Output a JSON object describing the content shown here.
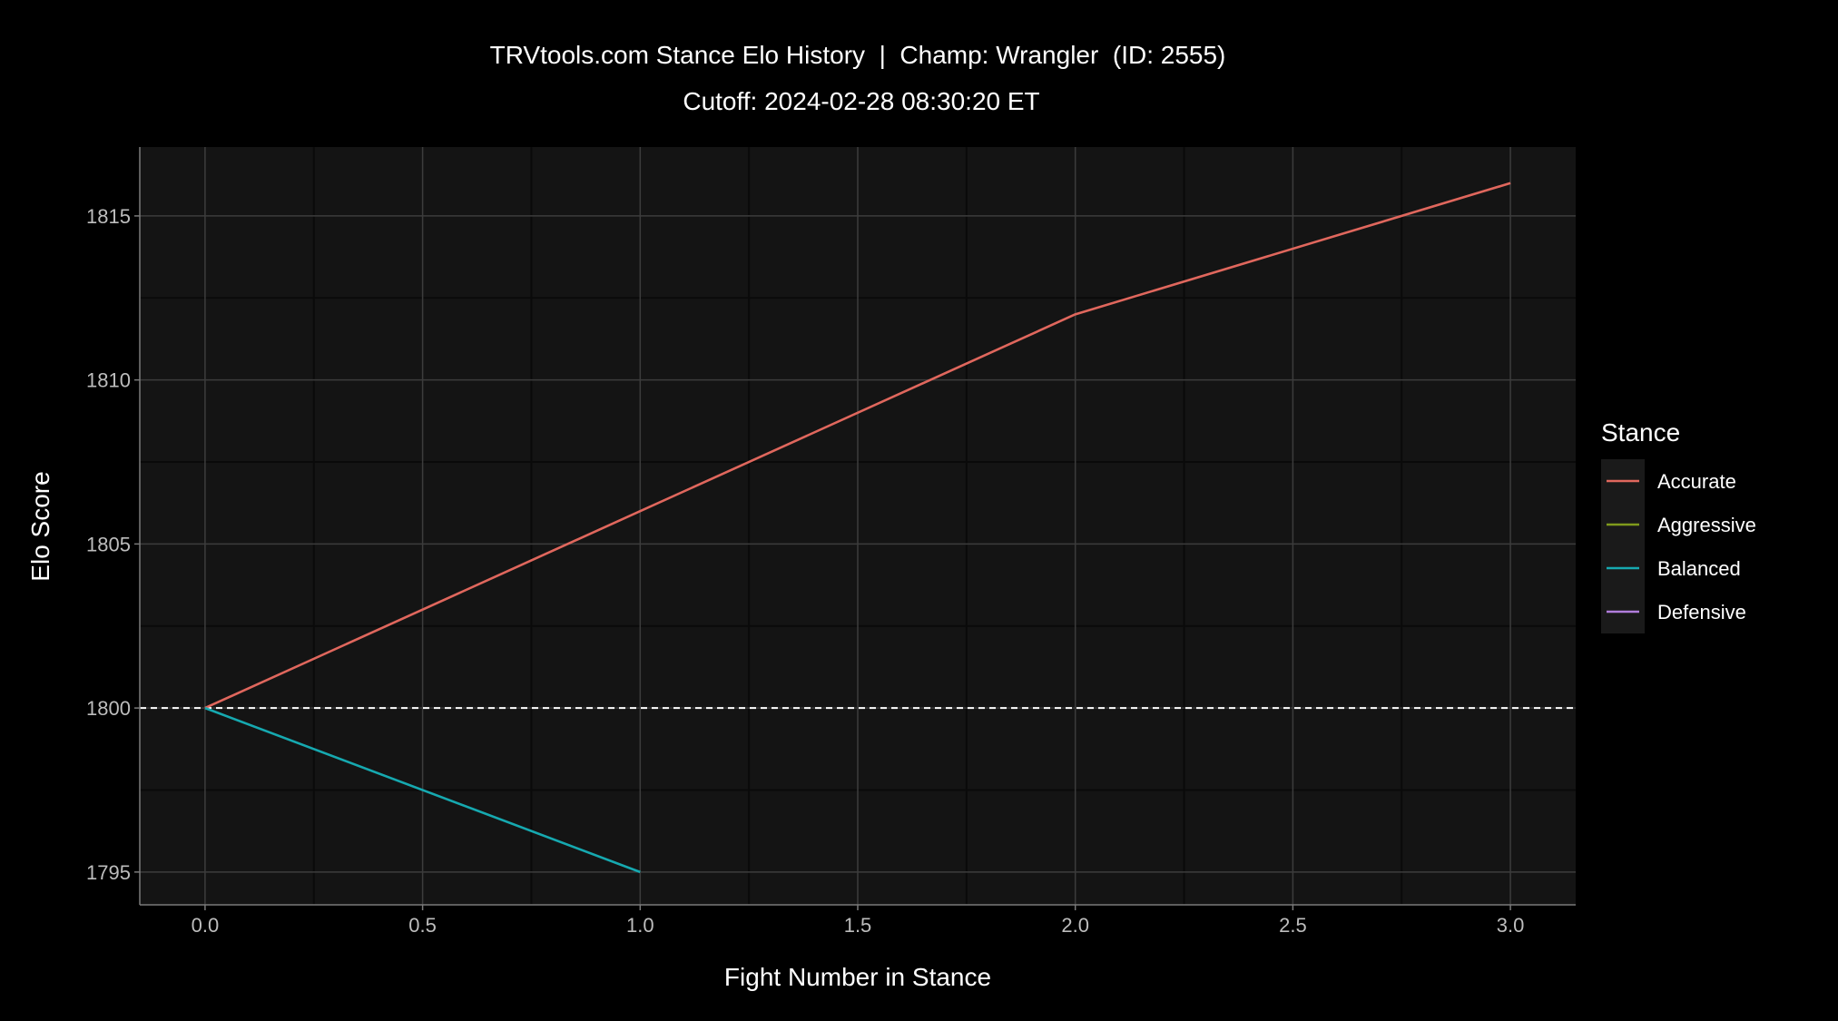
{
  "chart_data": {
    "type": "line",
    "title": "TRVtools.com Stance Elo History  |  Champ: Wrangler  (ID: 2555)",
    "subtitle": "Cutoff: 2024-02-28 08:30:20 ET",
    "xlabel": "Fight Number in Stance",
    "ylabel": "Elo Score",
    "xlim": [
      -0.15,
      3.15
    ],
    "ylim": [
      1794,
      1817.1
    ],
    "x_ticks": [
      0.0,
      0.5,
      1.0,
      1.5,
      2.0,
      2.5,
      3.0
    ],
    "x_tick_labels": [
      "0.0",
      "0.5",
      "1.0",
      "1.5",
      "2.0",
      "2.5",
      "3.0"
    ],
    "y_ticks": [
      1795,
      1800,
      1805,
      1810,
      1815
    ],
    "y_tick_labels": [
      "1795",
      "1800",
      "1805",
      "1810",
      "1815"
    ],
    "grid": true,
    "reference_line": {
      "y": 1800,
      "style": "dashed",
      "color": "#ffffff"
    },
    "legend": {
      "title": "Stance",
      "placement": "right",
      "entries": [
        {
          "name": "Accurate",
          "color": "#e0675d"
        },
        {
          "name": "Aggressive",
          "color": "#7f9a1c"
        },
        {
          "name": "Balanced",
          "color": "#16a9b0"
        },
        {
          "name": "Defensive",
          "color": "#b07ddb"
        }
      ]
    },
    "series": [
      {
        "name": "Accurate",
        "color": "#e0675d",
        "x": [
          0,
          1,
          2,
          3
        ],
        "y": [
          1800,
          1806,
          1812,
          1816
        ]
      },
      {
        "name": "Balanced",
        "color": "#16a9b0",
        "x": [
          0,
          1
        ],
        "y": [
          1800,
          1795
        ]
      }
    ],
    "colors": {
      "background": "#000000",
      "panel": "#141414",
      "grid_major": "#3c3c3c",
      "grid_minor": "#0a0a0a",
      "text": "#ffffff",
      "tick_text": "#bdbdbd",
      "legend_bg": "#1a1a1a"
    }
  }
}
